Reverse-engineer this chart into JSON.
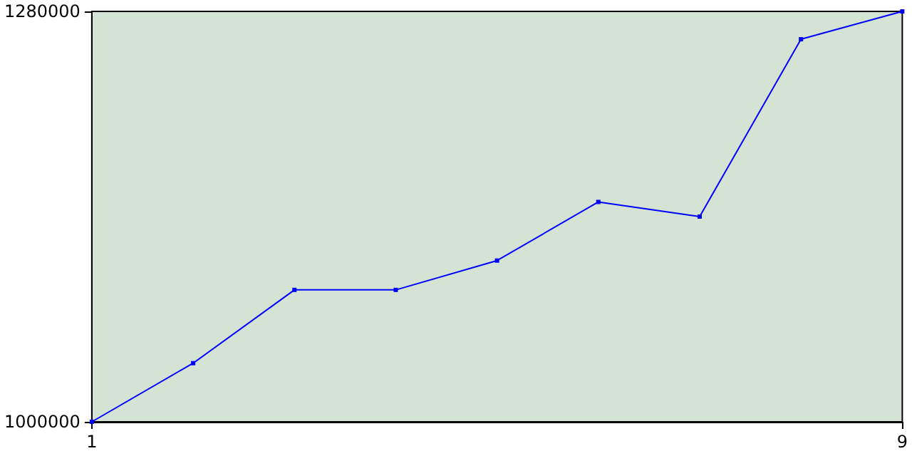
{
  "chart_data": {
    "type": "line",
    "x": [
      1,
      2,
      3,
      4,
      5,
      6,
      7,
      8,
      9
    ],
    "series": [
      {
        "color": "#0000ff",
        "values": [
          1000000,
          1040000,
          1090000,
          1090000,
          1110000,
          1150000,
          1140000,
          1261000,
          1280000
        ]
      }
    ],
    "xlim": [
      1,
      9
    ],
    "xticks": [
      1,
      9
    ],
    "ylim": [
      1000000,
      1280000
    ],
    "yticks": [
      1000000,
      1280000
    ],
    "grid": false,
    "marker": "square",
    "line_style": "solid"
  }
}
